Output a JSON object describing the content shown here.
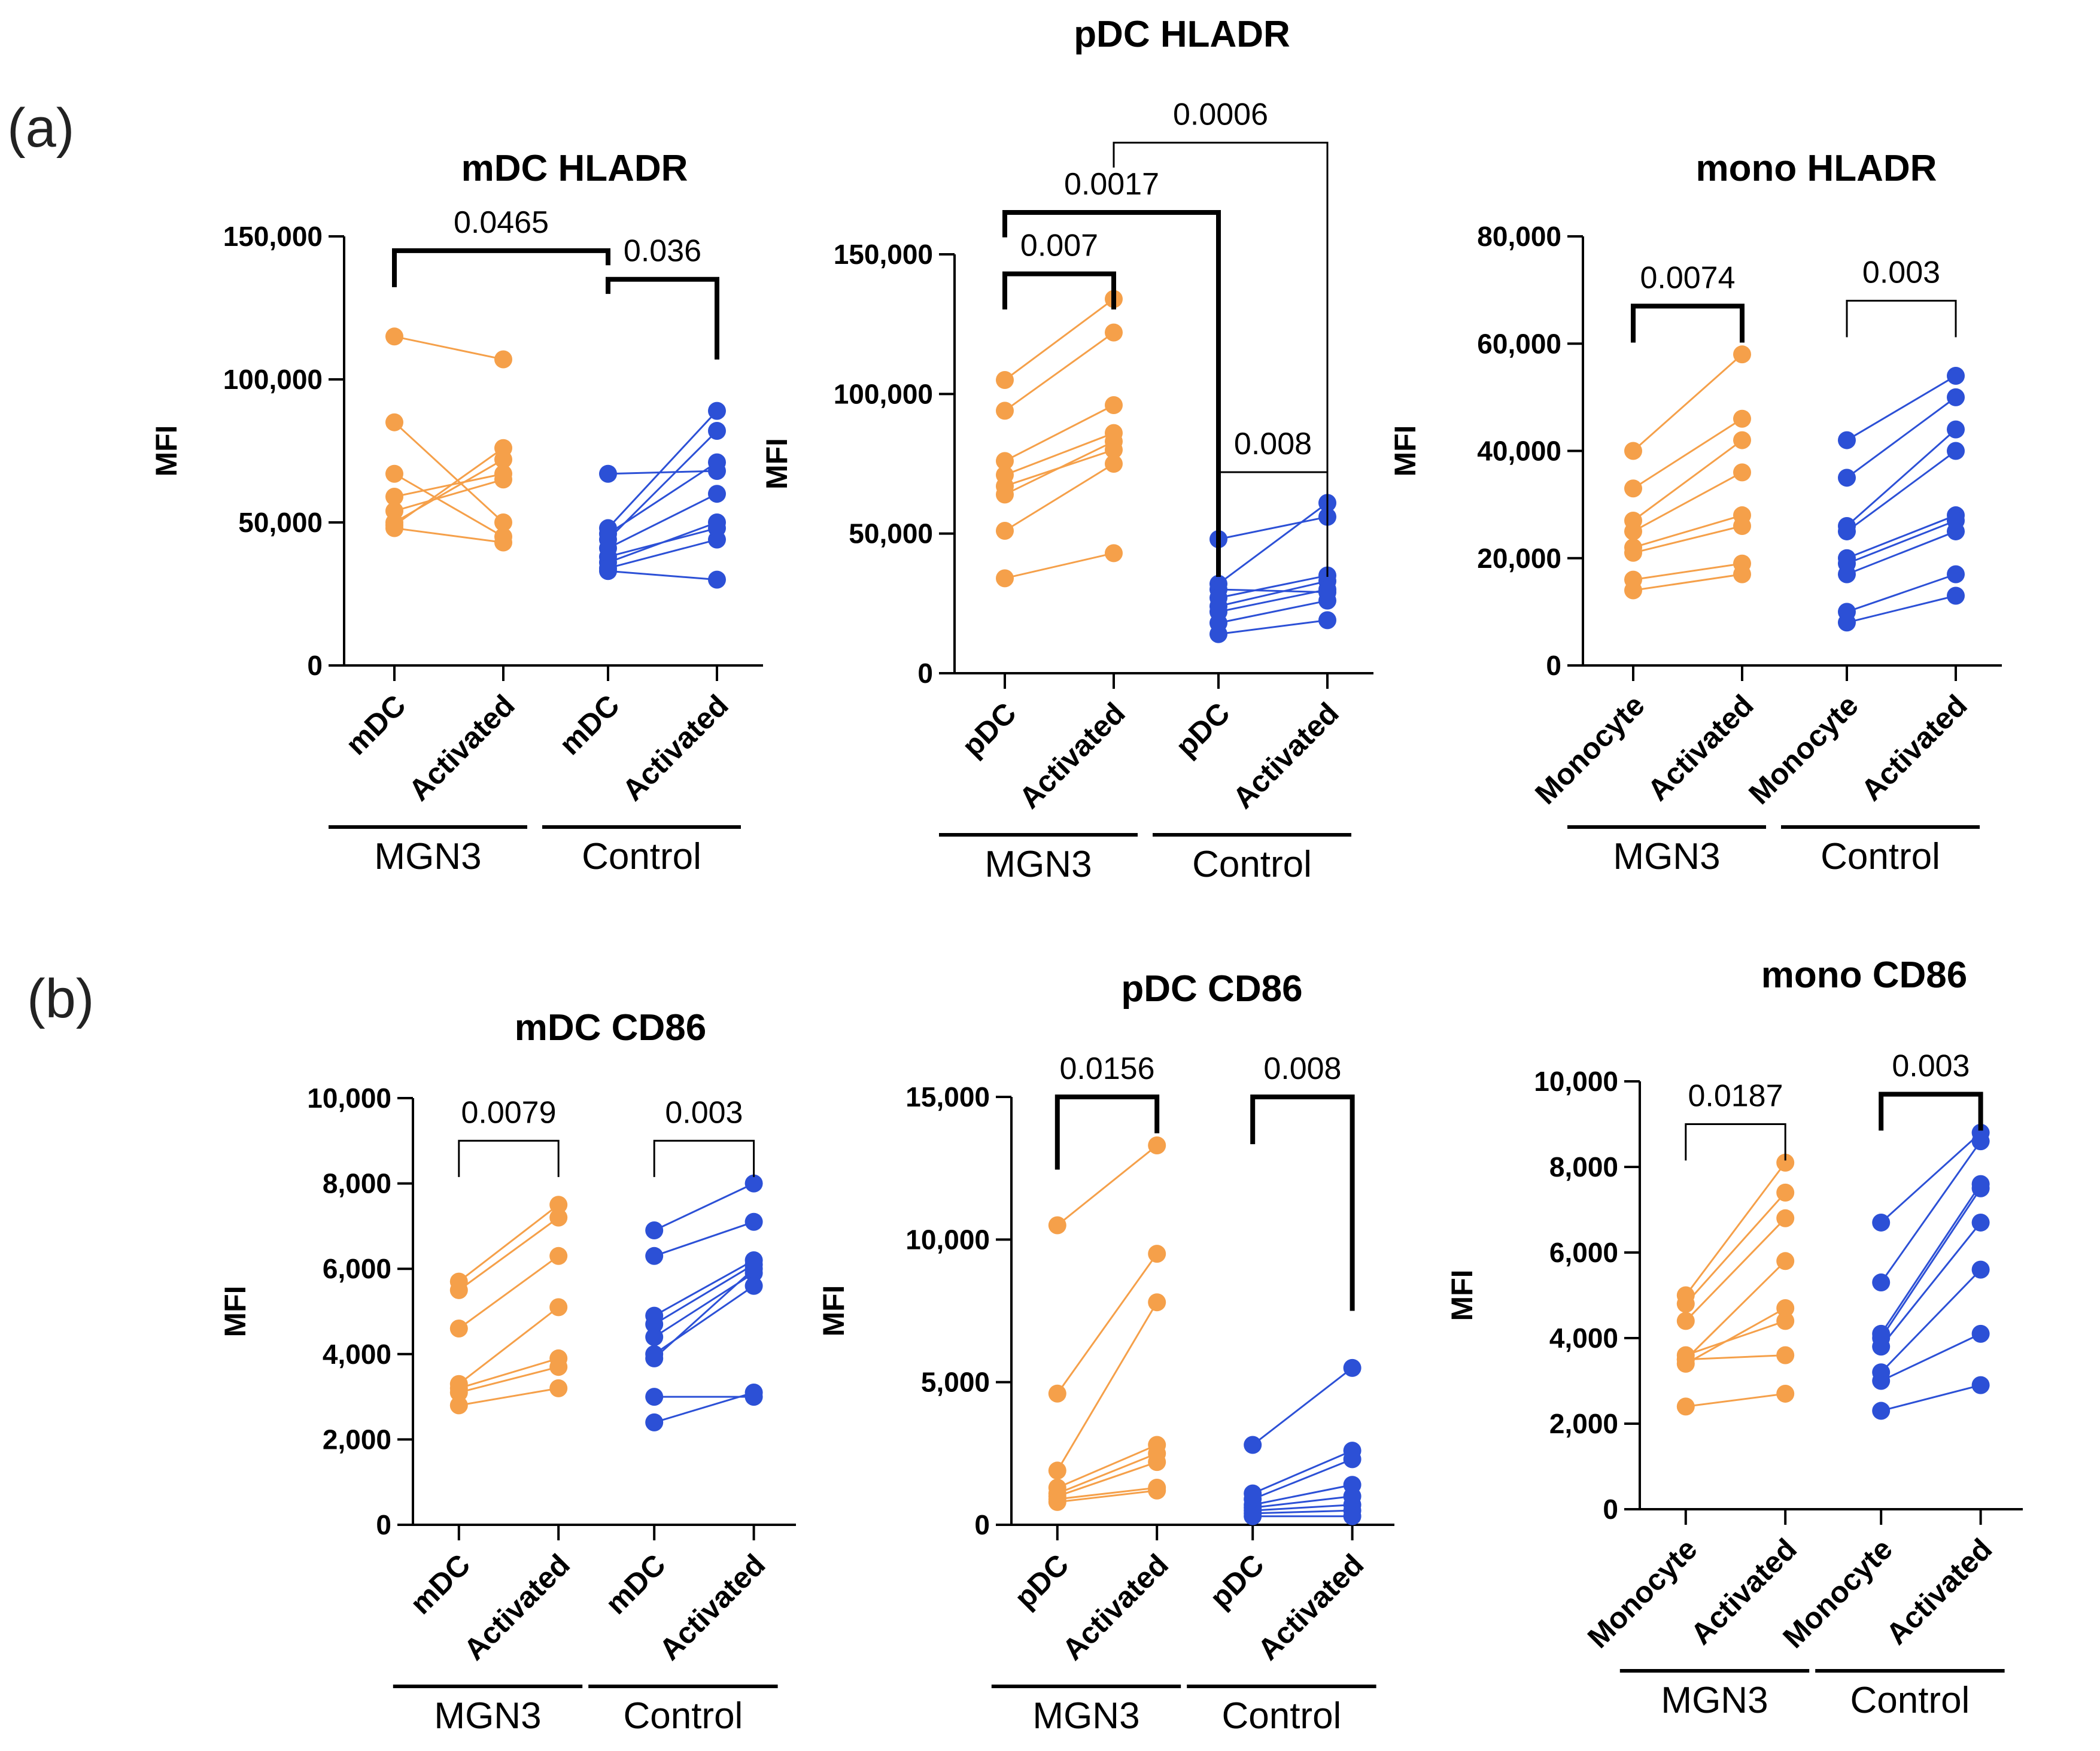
{
  "panels": [
    {
      "label": "(a)"
    },
    {
      "label": "(b)"
    }
  ],
  "colors": {
    "mgn3": "#F5A04A",
    "control": "#2C50D6",
    "axis": "#000000"
  },
  "chart_data": [
    {
      "id": "mdc-hladr",
      "type": "scatter",
      "title": "mDC HLADR",
      "ylabel": "MFI",
      "ylim": [
        0,
        150000
      ],
      "yticks": [
        0,
        50000,
        100000,
        150000
      ],
      "ytick_labels": [
        "0",
        "50,000",
        "100,000",
        "150,000"
      ],
      "categories": [
        "mDC",
        "Activated",
        "mDC",
        "Activated"
      ],
      "groups": [
        {
          "name": "MGN3",
          "categories": [
            0,
            1
          ]
        },
        {
          "name": "Control",
          "categories": [
            2,
            3
          ]
        }
      ],
      "series": [
        {
          "name": "MGN3",
          "color_key": "mgn3",
          "pairs": [
            [
              115000,
              107000
            ],
            [
              85000,
              50000
            ],
            [
              67000,
              45000
            ],
            [
              59000,
              67000
            ],
            [
              54000,
              65000
            ],
            [
              50000,
              72000
            ],
            [
              49000,
              76000
            ],
            [
              48000,
              43000
            ]
          ]
        },
        {
          "name": "Control",
          "color_key": "control",
          "pairs": [
            [
              67000,
              68000
            ],
            [
              48000,
              89000
            ],
            [
              46000,
              71000
            ],
            [
              44000,
              82000
            ],
            [
              41000,
              60000
            ],
            [
              38000,
              48000
            ],
            [
              36000,
              50000
            ],
            [
              34000,
              44000
            ],
            [
              33000,
              30000
            ]
          ]
        }
      ],
      "comparisons": [
        {
          "from": 0,
          "to": 2,
          "level": 145000,
          "label": "0.0465",
          "bold": true
        },
        {
          "from": 2,
          "to": 3,
          "level": 135000,
          "label": "0.036",
          "bold": true
        }
      ]
    },
    {
      "id": "pdc-hladr",
      "type": "scatter",
      "title": "pDC HLADR",
      "ylabel": "MFI",
      "ylim": [
        0,
        150000
      ],
      "yticks": [
        0,
        50000,
        100000,
        150000
      ],
      "ytick_labels": [
        "0",
        "50,000",
        "100,000",
        "150,000"
      ],
      "categories": [
        "pDC",
        "Activated",
        "pDC",
        "Activated"
      ],
      "groups": [
        {
          "name": "MGN3",
          "categories": [
            0,
            1
          ]
        },
        {
          "name": "Control",
          "categories": [
            2,
            3
          ]
        }
      ],
      "series": [
        {
          "name": "MGN3",
          "color_key": "mgn3",
          "pairs": [
            [
              105000,
              134000
            ],
            [
              94000,
              122000
            ],
            [
              76000,
              96000
            ],
            [
              71000,
              86000
            ],
            [
              67000,
              80000
            ],
            [
              64000,
              83000
            ],
            [
              51000,
              75000
            ],
            [
              34000,
              43000
            ]
          ]
        },
        {
          "name": "Control",
          "color_key": "control",
          "pairs": [
            [
              48000,
              56000
            ],
            [
              32000,
              61000
            ],
            [
              30000,
              29000
            ],
            [
              27000,
              35000
            ],
            [
              24000,
              33000
            ],
            [
              22000,
              30000
            ],
            [
              18000,
              26000
            ],
            [
              14000,
              19000
            ]
          ]
        }
      ],
      "comparisons": [
        {
          "from": 0,
          "to": 1,
          "level": 143000,
          "label": "0.007",
          "bold": true
        },
        {
          "from": 0,
          "to": 2,
          "level": 165000,
          "label": "0.0017",
          "bold": true
        },
        {
          "from": 1,
          "to": 3,
          "level": 190000,
          "label": "0.0006",
          "bold": false
        },
        {
          "from": 2,
          "to": 3,
          "level": 72000,
          "label": "0.008",
          "bold": false
        }
      ]
    },
    {
      "id": "mono-hladr",
      "type": "scatter",
      "title": "mono  HLADR",
      "ylabel": "MFI",
      "ylim": [
        0,
        80000
      ],
      "yticks": [
        0,
        20000,
        40000,
        60000,
        80000
      ],
      "ytick_labels": [
        "0",
        "20,000",
        "40,000",
        "60,000",
        "80,000"
      ],
      "categories": [
        "Monocyte",
        "Activated",
        "Monocyte",
        "Activated"
      ],
      "groups": [
        {
          "name": "MGN3",
          "categories": [
            0,
            1
          ]
        },
        {
          "name": "Control",
          "categories": [
            2,
            3
          ]
        }
      ],
      "series": [
        {
          "name": "MGN3",
          "color_key": "mgn3",
          "pairs": [
            [
              40000,
              58000
            ],
            [
              33000,
              46000
            ],
            [
              27000,
              42000
            ],
            [
              25000,
              36000
            ],
            [
              22000,
              28000
            ],
            [
              21000,
              26000
            ],
            [
              16000,
              19000
            ],
            [
              14000,
              17000
            ]
          ]
        },
        {
          "name": "Control",
          "color_key": "control",
          "pairs": [
            [
              42000,
              54000
            ],
            [
              35000,
              50000
            ],
            [
              26000,
              44000
            ],
            [
              25000,
              40000
            ],
            [
              20000,
              28000
            ],
            [
              19000,
              27000
            ],
            [
              17000,
              25000
            ],
            [
              10000,
              17000
            ],
            [
              8000,
              13000
            ]
          ]
        }
      ],
      "comparisons": [
        {
          "from": 0,
          "to": 1,
          "level": 67000,
          "label": "0.0074",
          "bold": true
        },
        {
          "from": 2,
          "to": 3,
          "level": 68000,
          "label": "0.003",
          "bold": false
        }
      ]
    },
    {
      "id": "mdc-cd86",
      "type": "scatter",
      "title": "mDC CD86",
      "ylabel": "MFI",
      "ylim": [
        0,
        10000
      ],
      "yticks": [
        0,
        2000,
        4000,
        6000,
        8000,
        10000
      ],
      "ytick_labels": [
        "0",
        "2,000",
        "4,000",
        "6,000",
        "8,000",
        "10,000"
      ],
      "categories": [
        "mDC",
        "Activated",
        "mDC",
        "Activated"
      ],
      "groups": [
        {
          "name": "MGN3",
          "categories": [
            0,
            1
          ]
        },
        {
          "name": "Control",
          "categories": [
            2,
            3
          ]
        }
      ],
      "series": [
        {
          "name": "MGN3",
          "color_key": "mgn3",
          "pairs": [
            [
              5700,
              7500
            ],
            [
              5500,
              7200
            ],
            [
              4600,
              6300
            ],
            [
              3300,
              5100
            ],
            [
              3200,
              3900
            ],
            [
              3100,
              3700
            ],
            [
              2800,
              3200
            ]
          ]
        },
        {
          "name": "Control",
          "color_key": "control",
          "pairs": [
            [
              6900,
              8000
            ],
            [
              6300,
              7100
            ],
            [
              4900,
              6200
            ],
            [
              4700,
              6100
            ],
            [
              4400,
              5900
            ],
            [
              4000,
              5600
            ],
            [
              3900,
              6000
            ],
            [
              3000,
              3000
            ],
            [
              2400,
              3100
            ]
          ]
        }
      ],
      "comparisons": [
        {
          "from": 0,
          "to": 1,
          "level": 9000,
          "label": "0.0079",
          "bold": false
        },
        {
          "from": 2,
          "to": 3,
          "level": 9000,
          "label": "0.003",
          "bold": false
        }
      ]
    },
    {
      "id": "pdc-cd86",
      "type": "scatter",
      "title": "pDC CD86",
      "ylabel": "MFI",
      "ylim": [
        0,
        15000
      ],
      "yticks": [
        0,
        5000,
        10000,
        15000
      ],
      "ytick_labels": [
        "0",
        "5,000",
        "10,000",
        "15,000"
      ],
      "categories": [
        "pDC",
        "Activated",
        "pDC",
        "Activated"
      ],
      "groups": [
        {
          "name": "MGN3",
          "categories": [
            0,
            1
          ]
        },
        {
          "name": "Control",
          "categories": [
            2,
            3
          ]
        }
      ],
      "series": [
        {
          "name": "MGN3",
          "color_key": "mgn3",
          "pairs": [
            [
              10500,
              13300
            ],
            [
              4600,
              9500
            ],
            [
              1900,
              7800
            ],
            [
              1300,
              2800
            ],
            [
              1100,
              2500
            ],
            [
              1000,
              2200
            ],
            [
              900,
              1300
            ],
            [
              800,
              1200
            ]
          ]
        },
        {
          "name": "Control",
          "color_key": "control",
          "pairs": [
            [
              2800,
              5500
            ],
            [
              1100,
              2600
            ],
            [
              900,
              2300
            ],
            [
              700,
              1400
            ],
            [
              600,
              1000
            ],
            [
              500,
              700
            ],
            [
              400,
              500
            ],
            [
              300,
              300
            ]
          ]
        }
      ],
      "comparisons": [
        {
          "from": 0,
          "to": 1,
          "level": 15000,
          "label": "0.0156",
          "bold": true
        },
        {
          "from": 2,
          "to": 3,
          "level": 15000,
          "label": "0.008",
          "bold": true
        }
      ]
    },
    {
      "id": "mono-cd86",
      "type": "scatter",
      "title": "mono CD86",
      "ylabel": "MFI",
      "ylim": [
        0,
        10000
      ],
      "yticks": [
        0,
        2000,
        4000,
        6000,
        8000,
        10000
      ],
      "ytick_labels": [
        "0",
        "2,000",
        "4,000",
        "6,000",
        "8,000",
        "10,000"
      ],
      "categories": [
        "Monocyte",
        "Activated",
        "Monocyte",
        "Activated"
      ],
      "groups": [
        {
          "name": "MGN3",
          "categories": [
            0,
            1
          ]
        },
        {
          "name": "Control",
          "categories": [
            2,
            3
          ]
        }
      ],
      "series": [
        {
          "name": "MGN3",
          "color_key": "mgn3",
          "pairs": [
            [
              5000,
              8100
            ],
            [
              4800,
              7400
            ],
            [
              4400,
              6800
            ],
            [
              3500,
              5800
            ],
            [
              3400,
              4700
            ],
            [
              3600,
              4400
            ],
            [
              3500,
              3600
            ],
            [
              2400,
              2700
            ]
          ]
        },
        {
          "name": "Control",
          "color_key": "control",
          "pairs": [
            [
              6700,
              8800
            ],
            [
              5300,
              8600
            ],
            [
              4100,
              7600
            ],
            [
              4000,
              7500
            ],
            [
              3800,
              6700
            ],
            [
              3200,
              5600
            ],
            [
              3000,
              4100
            ],
            [
              2300,
              2900
            ]
          ]
        }
      ],
      "comparisons": [
        {
          "from": 0,
          "to": 1,
          "level": 9000,
          "label": "0.0187",
          "bold": false
        },
        {
          "from": 2,
          "to": 3,
          "level": 9700,
          "label": "0.003",
          "bold": true
        }
      ]
    }
  ]
}
